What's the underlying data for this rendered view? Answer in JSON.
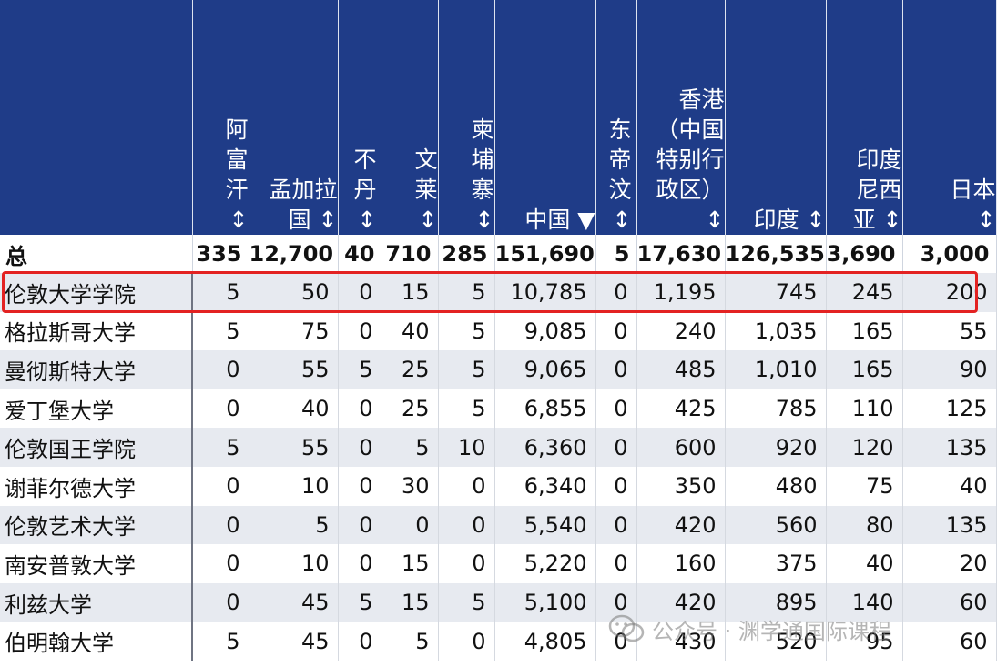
{
  "header": {
    "columns": [
      {
        "key": "name",
        "lines": []
      },
      {
        "key": "afghanistan",
        "lines": [
          "阿",
          "富",
          "汗",
          "↕"
        ]
      },
      {
        "key": "bangladesh",
        "lines": [
          "孟加拉",
          "国 ↕"
        ]
      },
      {
        "key": "bhutan",
        "lines": [
          "不",
          "丹",
          "↕"
        ]
      },
      {
        "key": "brunei",
        "lines": [
          "文",
          "莱",
          "↕"
        ]
      },
      {
        "key": "cambodia",
        "lines": [
          "柬",
          "埔",
          "寨",
          "↕"
        ]
      },
      {
        "key": "china",
        "lines": [
          "中国 ▼"
        ]
      },
      {
        "key": "east_timor",
        "lines": [
          "东",
          "帝",
          "汶",
          "↕"
        ]
      },
      {
        "key": "hong_kong",
        "lines": [
          "香港",
          "（中国",
          "特别行",
          "政区）",
          "↕"
        ]
      },
      {
        "key": "india",
        "lines": [
          "印度 ↕"
        ]
      },
      {
        "key": "indonesia",
        "lines": [
          "印度",
          "尼西",
          "亚 ↕"
        ]
      },
      {
        "key": "japan",
        "lines": [
          "日本",
          "↕"
        ]
      }
    ]
  },
  "total": {
    "label": "总",
    "values": [
      "335",
      "12,700",
      "40",
      "710",
      "285",
      "151,690",
      "5",
      "17,630",
      "126,535",
      "3,690",
      "3,000"
    ]
  },
  "rows": [
    {
      "name": "伦敦大学学院",
      "values": [
        "5",
        "50",
        "0",
        "15",
        "5",
        "10,785",
        "0",
        "1,195",
        "745",
        "245",
        "200"
      ]
    },
    {
      "name": "格拉斯哥大学",
      "values": [
        "5",
        "75",
        "0",
        "40",
        "5",
        "9,085",
        "0",
        "240",
        "1,035",
        "165",
        "55"
      ]
    },
    {
      "name": "曼彻斯特大学",
      "values": [
        "0",
        "55",
        "5",
        "25",
        "5",
        "9,065",
        "0",
        "485",
        "1,010",
        "165",
        "90"
      ]
    },
    {
      "name": "爱丁堡大学",
      "values": [
        "0",
        "40",
        "0",
        "25",
        "5",
        "6,855",
        "0",
        "425",
        "785",
        "110",
        "125"
      ]
    },
    {
      "name": "伦敦国王学院",
      "values": [
        "5",
        "55",
        "0",
        "5",
        "10",
        "6,360",
        "0",
        "600",
        "920",
        "120",
        "135"
      ]
    },
    {
      "name": "谢菲尔德大学",
      "values": [
        "0",
        "10",
        "0",
        "30",
        "0",
        "6,340",
        "0",
        "350",
        "480",
        "75",
        "40"
      ]
    },
    {
      "name": "伦敦艺术大学",
      "values": [
        "0",
        "5",
        "0",
        "0",
        "0",
        "5,540",
        "0",
        "420",
        "560",
        "80",
        "135"
      ]
    },
    {
      "name": "南安普敦大学",
      "values": [
        "0",
        "10",
        "0",
        "15",
        "0",
        "5,220",
        "0",
        "160",
        "375",
        "40",
        "20"
      ]
    },
    {
      "name": "利兹大学",
      "values": [
        "0",
        "45",
        "5",
        "15",
        "5",
        "5,100",
        "0",
        "420",
        "895",
        "140",
        "60"
      ]
    },
    {
      "name": "伯明翰大学",
      "values": [
        "5",
        "45",
        "0",
        "5",
        "0",
        "4,805",
        "0",
        "430",
        "520",
        "95",
        "60"
      ]
    }
  ],
  "highlight_row": "伦敦大学学院",
  "watermark": {
    "text": "公众号 · 渊学通国际课程",
    "icon": "wechat-icon"
  },
  "colors": {
    "header_bg": "#1f3c88",
    "alt_row": "#e7eaf0",
    "highlight": "#e32222"
  }
}
